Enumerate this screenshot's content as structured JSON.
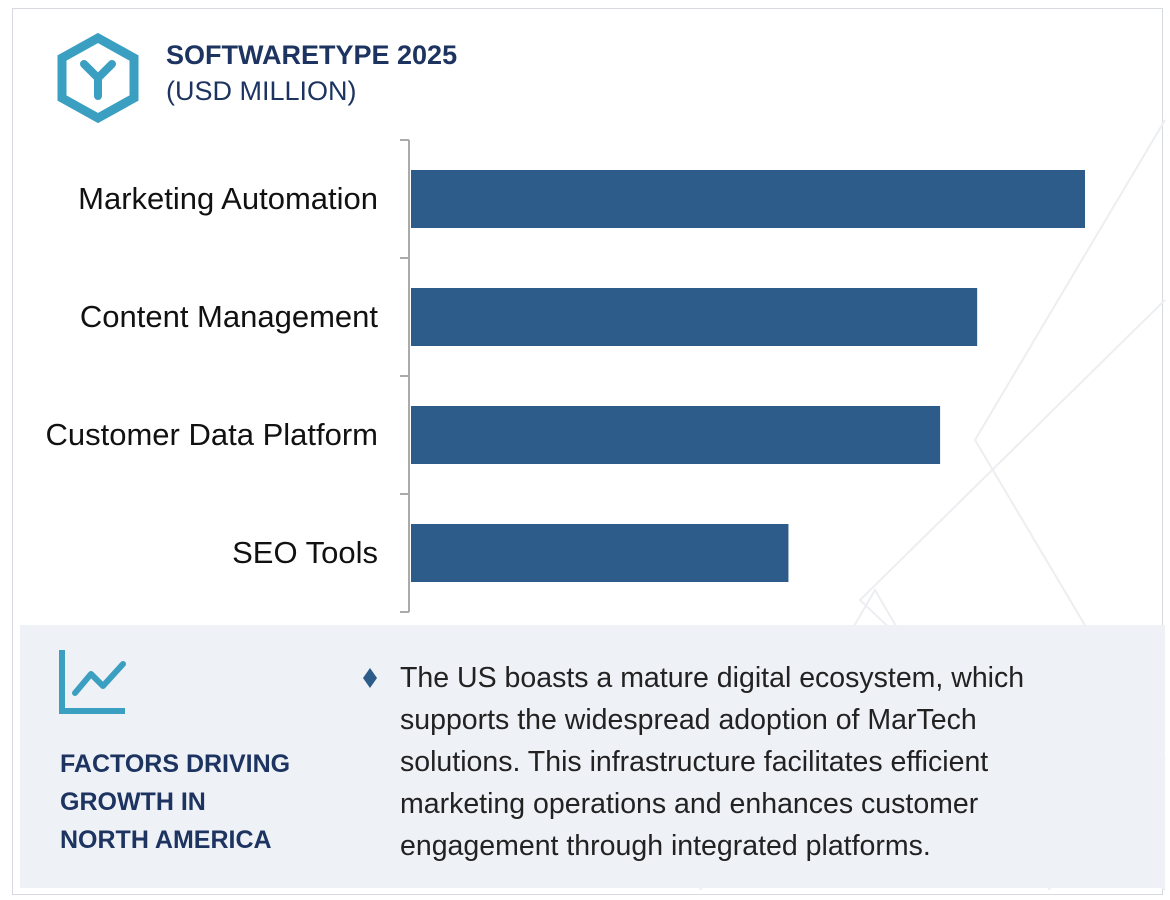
{
  "header": {
    "title": "SOFTWARETYPE 2025",
    "subtitle": "(USD MILLION)"
  },
  "chart_data": {
    "type": "bar",
    "orientation": "horizontal",
    "categories": [
      "Marketing Automation",
      "Content Management",
      "Customer Data Platform",
      "SEO Tools"
    ],
    "values": [
      100,
      84,
      78.5,
      56
    ],
    "color": "#2d5b8a"
  },
  "panel": {
    "heading": [
      "FACTORS DRIVING",
      "GROWTH IN",
      "NORTH AMERICA"
    ],
    "text": "The US boasts a mature digital ecosystem, which supports the widespread adoption of MarTech solutions. This infrastructure facilitates efficient marketing operations and enhances customer engagement through integrated platforms."
  }
}
